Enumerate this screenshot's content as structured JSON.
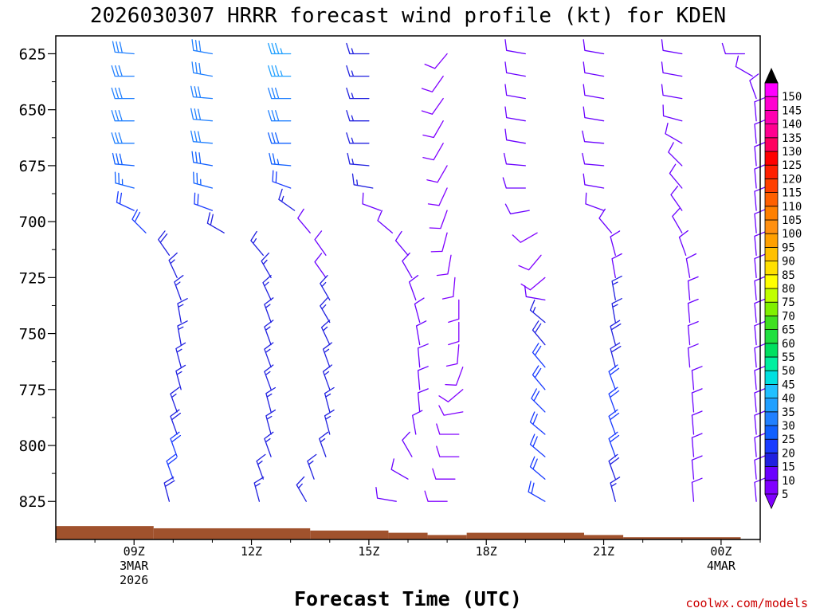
{
  "chart_data": {
    "type": "wind-barb-profile",
    "title": "2026030307 HRRR forecast wind profile (kt) for KDEN",
    "xlabel": "Forecast Time (UTC)",
    "ylabel": "",
    "credit": "coolwx.com/models",
    "x_range_hours": [
      7,
      25
    ],
    "y_range_hpa": [
      617,
      842
    ],
    "x_ticks": [
      {
        "hour": 9,
        "label": "09Z",
        "sublabel": [
          "3MAR",
          "2026"
        ]
      },
      {
        "hour": 12,
        "label": "12Z",
        "sublabel": []
      },
      {
        "hour": 15,
        "label": "15Z",
        "sublabel": []
      },
      {
        "hour": 18,
        "label": "18Z",
        "sublabel": []
      },
      {
        "hour": 21,
        "label": "21Z",
        "sublabel": []
      },
      {
        "hour": 24,
        "label": "00Z",
        "sublabel": [
          "4MAR"
        ]
      }
    ],
    "y_ticks": [
      {
        "value": 625,
        "label": "625"
      },
      {
        "value": 650,
        "label": "650"
      },
      {
        "value": 675,
        "label": "675"
      },
      {
        "value": 700,
        "label": "700"
      },
      {
        "value": 725,
        "label": "725"
      },
      {
        "value": 750,
        "label": "750"
      },
      {
        "value": 775,
        "label": "775"
      },
      {
        "value": 800,
        "label": "800"
      },
      {
        "value": 825,
        "label": "825"
      }
    ],
    "terrain": [
      {
        "from": 7,
        "to": 9.5,
        "pressure": 836
      },
      {
        "from": 9.5,
        "to": 13.5,
        "pressure": 837
      },
      {
        "from": 13.5,
        "to": 15.5,
        "pressure": 838
      },
      {
        "from": 15.5,
        "to": 16.5,
        "pressure": 839
      },
      {
        "from": 16.5,
        "to": 17.5,
        "pressure": 840
      },
      {
        "from": 17.5,
        "to": 20.5,
        "pressure": 839
      },
      {
        "from": 20.5,
        "to": 21.5,
        "pressure": 840
      },
      {
        "from": 21.5,
        "to": 24.5,
        "pressure": 841
      },
      {
        "from": 24.5,
        "to": 25,
        "pressure": 842
      }
    ],
    "levels_hpa": [
      625,
      635,
      645,
      655,
      665,
      675,
      685,
      695,
      705,
      715,
      725,
      735,
      745,
      755,
      765,
      775,
      785,
      795,
      805,
      815,
      825
    ],
    "series": [
      {
        "hour": 9,
        "x_shift": [
          0,
          0,
          0,
          0,
          0,
          0,
          0,
          0,
          0.3,
          0.9,
          1.1,
          1.2,
          1.2,
          1.2,
          1.2,
          1.2,
          1.1,
          1.1,
          1.1,
          1.0,
          0.9
        ],
        "dir": [
          275,
          270,
          270,
          270,
          270,
          275,
          285,
          295,
          315,
          325,
          335,
          340,
          350,
          350,
          345,
          345,
          340,
          340,
          340,
          340,
          345
        ],
        "spd": [
          30,
          30,
          30,
          30,
          30,
          28,
          25,
          22,
          20,
          18,
          15,
          15,
          15,
          15,
          15,
          15,
          15,
          18,
          20,
          20,
          18
        ]
      },
      {
        "hour": 11,
        "x_shift": [
          0,
          0,
          0,
          0,
          0,
          0,
          0,
          0,
          0.3,
          1.3,
          1.5,
          1.5,
          1.5,
          1.5,
          1.5,
          1.5,
          1.5,
          1.5,
          1.5,
          1.3,
          1.2
        ],
        "dir": [
          280,
          280,
          275,
          275,
          275,
          280,
          285,
          290,
          300,
          320,
          330,
          335,
          340,
          340,
          340,
          340,
          345,
          345,
          340,
          340,
          345
        ],
        "spd": [
          30,
          30,
          30,
          30,
          30,
          28,
          25,
          20,
          18,
          15,
          15,
          15,
          15,
          15,
          15,
          15,
          15,
          15,
          15,
          15,
          15
        ]
      },
      {
        "hour": 13,
        "x_shift": [
          0,
          0,
          0,
          0,
          0,
          0,
          0,
          0.1,
          0.5,
          0.9,
          0.9,
          1.0,
          1.0,
          1.0,
          1.0,
          1.0,
          1.0,
          1.0,
          0.9,
          0.6,
          0.4
        ],
        "dir": [
          270,
          270,
          270,
          270,
          270,
          275,
          290,
          305,
          320,
          325,
          325,
          330,
          330,
          335,
          340,
          340,
          345,
          345,
          340,
          340,
          330
        ],
        "spd": [
          35,
          35,
          30,
          30,
          28,
          25,
          20,
          15,
          12,
          12,
          12,
          15,
          15,
          15,
          15,
          15,
          15,
          15,
          15,
          15,
          15
        ]
      },
      {
        "hour": 15,
        "x_shift": [
          0,
          0,
          0,
          0,
          0,
          0,
          0.1,
          0.3,
          0.6,
          1.0,
          1.1,
          1.2,
          1.3,
          1.3,
          1.3,
          1.3,
          1.3,
          1.2,
          1.1,
          1.0,
          0.7
        ],
        "dir": [
          270,
          270,
          270,
          270,
          270,
          275,
          280,
          290,
          310,
          320,
          330,
          340,
          345,
          350,
          355,
          355,
          355,
          350,
          330,
          300,
          280
        ],
        "spd": [
          15,
          15,
          15,
          15,
          15,
          15,
          15,
          12,
          10,
          10,
          10,
          10,
          10,
          10,
          10,
          10,
          10,
          10,
          10,
          10,
          10
        ]
      },
      {
        "hour": 17,
        "x_shift": [
          0,
          -0.1,
          -0.1,
          -0.1,
          -0.1,
          0,
          0,
          0,
          0,
          0.1,
          0.2,
          0.3,
          0.3,
          0.3,
          0.4,
          0.4,
          0.4,
          0.3,
          0.3,
          0.2,
          0
        ],
        "dir": [
          220,
          215,
          215,
          210,
          210,
          210,
          205,
          200,
          195,
          190,
          185,
          180,
          180,
          185,
          200,
          230,
          260,
          270,
          270,
          270,
          270
        ],
        "spd": [
          8,
          8,
          8,
          8,
          8,
          8,
          8,
          8,
          8,
          8,
          8,
          8,
          8,
          8,
          8,
          8,
          8,
          8,
          8,
          8,
          8
        ]
      },
      {
        "hour": 19,
        "x_shift": [
          0,
          0,
          0,
          0,
          0,
          0,
          0,
          0.1,
          0.3,
          0.4,
          0.5,
          0.5,
          0.5,
          0.5,
          0.5,
          0.5,
          0.5,
          0.5,
          0.5,
          0.5,
          0.5
        ],
        "dir": [
          280,
          280,
          280,
          280,
          280,
          275,
          270,
          260,
          240,
          220,
          230,
          280,
          310,
          320,
          320,
          320,
          315,
          310,
          310,
          310,
          300
        ],
        "spd": [
          10,
          10,
          10,
          10,
          10,
          10,
          10,
          10,
          8,
          8,
          8,
          10,
          15,
          18,
          20,
          22,
          22,
          22,
          22,
          20,
          20
        ]
      },
      {
        "hour": 21,
        "x_shift": [
          0,
          0,
          0,
          0,
          0,
          0,
          0,
          0,
          0.2,
          0.3,
          0.3,
          0.3,
          0.3,
          0.3,
          0.3,
          0.3,
          0.3,
          0.3,
          0.3,
          0.3,
          0.3
        ],
        "dir": [
          280,
          280,
          280,
          280,
          275,
          275,
          280,
          290,
          320,
          345,
          350,
          350,
          350,
          345,
          345,
          340,
          340,
          340,
          340,
          340,
          345
        ],
        "spd": [
          10,
          10,
          10,
          10,
          10,
          10,
          10,
          10,
          10,
          10,
          12,
          15,
          15,
          18,
          18,
          20,
          22,
          22,
          20,
          18,
          15
        ]
      },
      {
        "hour": 23,
        "x_shift": [
          0,
          0,
          0,
          0,
          0,
          0,
          0,
          0,
          0,
          0.1,
          0.2,
          0.2,
          0.2,
          0.2,
          0.2,
          0.3,
          0.3,
          0.3,
          0.3,
          0.3,
          0.3
        ],
        "dir": [
          280,
          280,
          280,
          285,
          300,
          315,
          320,
          325,
          330,
          340,
          350,
          355,
          355,
          355,
          355,
          355,
          355,
          355,
          355,
          355,
          355
        ],
        "spd": [
          10,
          10,
          10,
          10,
          10,
          10,
          10,
          10,
          10,
          10,
          10,
          10,
          10,
          10,
          10,
          10,
          10,
          10,
          10,
          10,
          10
        ]
      },
      {
        "hour": 25,
        "x_shift": [
          -0.4,
          -0.2,
          -0.1,
          -0.1,
          -0.1,
          -0.1,
          -0.1,
          -0.1,
          -0.1,
          -0.1,
          -0.1,
          -0.1,
          -0.1,
          -0.1,
          -0.1,
          -0.1,
          -0.1,
          -0.1,
          -0.1,
          -0.1,
          -0.1
        ],
        "dir": [
          270,
          300,
          340,
          355,
          355,
          355,
          355,
          355,
          355,
          355,
          355,
          355,
          355,
          355,
          355,
          355,
          355,
          355,
          355,
          355,
          355
        ],
        "spd": [
          10,
          10,
          10,
          10,
          10,
          10,
          10,
          10,
          10,
          10,
          10,
          10,
          10,
          10,
          10,
          10,
          10,
          10,
          10,
          10,
          10
        ]
      }
    ],
    "colorbar": {
      "labels": [
        "5",
        "10",
        "15",
        "20",
        "25",
        "30",
        "35",
        "40",
        "45",
        "50",
        "55",
        "60",
        "65",
        "70",
        "75",
        "80",
        "85",
        "90",
        "95",
        "100",
        "105",
        "110",
        "115",
        "120",
        "125",
        "130",
        "135",
        "140",
        "145",
        "150"
      ],
      "colors": [
        "#8000ff",
        "#6a00ff",
        "#2020e0",
        "#1a3cff",
        "#1060ff",
        "#2080ff",
        "#20a0ff",
        "#20c0ff",
        "#00e0e0",
        "#00f0a0",
        "#00e060",
        "#20e040",
        "#40e020",
        "#80f000",
        "#c0ff00",
        "#ffff00",
        "#ffe000",
        "#ffc000",
        "#ffa000",
        "#ff9010",
        "#ff8000",
        "#ff6000",
        "#ff4000",
        "#ff2000",
        "#ff0000",
        "#ff0060",
        "#ff0090",
        "#ff00b0",
        "#ff00d0",
        "#ff00ff"
      ],
      "top_color": "#000000",
      "bottom_color": "#8000ff"
    },
    "terrain_color": "#a0522d"
  }
}
